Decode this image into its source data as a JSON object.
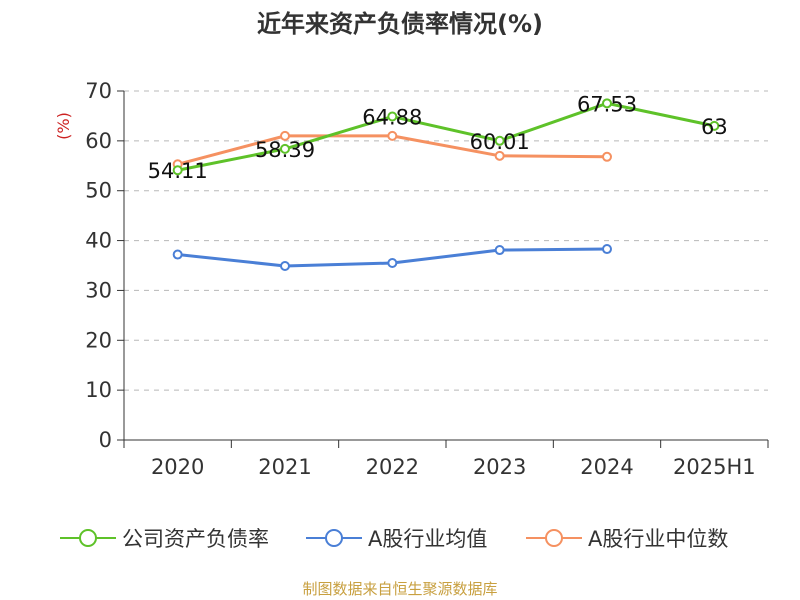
{
  "chart_data": {
    "type": "line",
    "title": "近年来资产负债率情况(%)",
    "ylabel": "(%)",
    "categories": [
      "2020",
      "2021",
      "2022",
      "2023",
      "2024",
      "2025H1"
    ],
    "ylim": [
      0,
      70
    ],
    "yticks": [
      0,
      10,
      20,
      30,
      40,
      50,
      60,
      70
    ],
    "grid": true,
    "legend_position": "bottom",
    "series": [
      {
        "name": "公司资产负债率",
        "color": "#5ec229",
        "values": [
          54.11,
          58.39,
          64.88,
          60.01,
          67.53,
          63
        ],
        "labels": [
          "54.11",
          "58.39",
          "64.88",
          "60.01",
          "67.53",
          "63"
        ]
      },
      {
        "name": "A股行业均值",
        "color": "#4a7fd6",
        "values": [
          37.2,
          34.9,
          35.5,
          38.1,
          38.3,
          null
        ]
      },
      {
        "name": "A股行业中位数",
        "color": "#f59161",
        "values": [
          55.3,
          61.0,
          61.0,
          57.0,
          56.8,
          null
        ]
      }
    ]
  },
  "footer": {
    "source": "制图数据来自恒生聚源数据库"
  }
}
